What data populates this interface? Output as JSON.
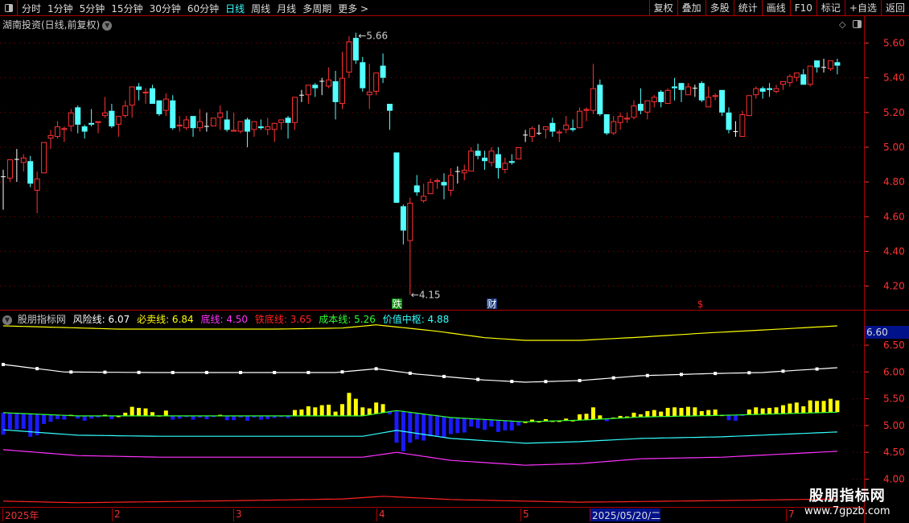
{
  "toolbar": {
    "periods": [
      "分时",
      "1分钟",
      "5分钟",
      "15分钟",
      "30分钟",
      "60分钟",
      "日线",
      "周线",
      "月线",
      "多周期",
      "更多 >"
    ],
    "active": "日线",
    "right_buttons": [
      "复权",
      "叠加",
      "多股",
      "统计",
      "画线",
      "F10",
      "标记",
      "+自选",
      "返回"
    ]
  },
  "chart_title": "湖南投资(日线,前复权)",
  "price_axis": {
    "ticks": [
      "5.60",
      "5.40",
      "5.20",
      "5.00",
      "4.80",
      "4.60",
      "4.40",
      "4.20"
    ]
  },
  "annotations": {
    "high": "5.66",
    "low": "4.15",
    "badges": [
      {
        "text": "跌",
        "color": "#0a8a0a",
        "index": 58
      },
      {
        "text": "财",
        "color": "#1a3a7a",
        "index": 72
      },
      {
        "text": "$",
        "color": "#e22",
        "index": 103
      }
    ]
  },
  "candles": [
    [
      4.83,
      4.87,
      4.64,
      4.83
    ],
    [
      4.82,
      4.93,
      4.8,
      4.93
    ],
    [
      4.93,
      4.99,
      4.8,
      4.93
    ],
    [
      4.91,
      4.96,
      4.86,
      4.94
    ],
    [
      4.92,
      4.95,
      4.77,
      4.79
    ],
    [
      4.75,
      4.86,
      4.62,
      4.82
    ],
    [
      4.85,
      5.03,
      4.85,
      5.03
    ],
    [
      5.05,
      5.1,
      4.99,
      5.07
    ],
    [
      5.06,
      5.15,
      5.05,
      5.12
    ],
    [
      5.1,
      5.12,
      5.03,
      5.11
    ],
    [
      5.12,
      5.22,
      5.09,
      5.2
    ],
    [
      5.23,
      5.24,
      5.08,
      5.13
    ],
    [
      5.12,
      5.13,
      5.05,
      5.09
    ],
    [
      5.14,
      5.22,
      5.12,
      5.13
    ],
    [
      5.14,
      5.15,
      5.08,
      5.15
    ],
    [
      5.18,
      5.29,
      5.17,
      5.2
    ],
    [
      5.21,
      5.25,
      5.11,
      5.12
    ],
    [
      5.13,
      5.18,
      5.06,
      5.18
    ],
    [
      5.18,
      5.27,
      5.17,
      5.24
    ],
    [
      5.24,
      5.35,
      5.17,
      5.35
    ],
    [
      5.35,
      5.37,
      5.27,
      5.33
    ],
    [
      5.31,
      5.34,
      5.25,
      5.32
    ],
    [
      5.34,
      5.36,
      5.25,
      5.25
    ],
    [
      5.27,
      5.27,
      5.18,
      5.19
    ],
    [
      5.21,
      5.31,
      5.18,
      5.28
    ],
    [
      5.27,
      5.3,
      5.1,
      5.11
    ],
    [
      5.12,
      5.18,
      5.09,
      5.13
    ],
    [
      5.11,
      5.18,
      5.1,
      5.16
    ],
    [
      5.18,
      5.18,
      5.06,
      5.11
    ],
    [
      5.11,
      5.22,
      5.09,
      5.15
    ],
    [
      5.12,
      5.2,
      5.09,
      5.12
    ],
    [
      5.12,
      5.17,
      5.12,
      5.17
    ],
    [
      5.17,
      5.24,
      5.1,
      5.2
    ],
    [
      5.16,
      5.21,
      5.09,
      5.1
    ],
    [
      5.09,
      5.2,
      5.09,
      5.1
    ],
    [
      5.09,
      5.15,
      5.08,
      5.15
    ],
    [
      5.16,
      5.17,
      5.0,
      5.09
    ],
    [
      5.1,
      5.15,
      5.06,
      5.15
    ],
    [
      5.12,
      5.16,
      5.1,
      5.11
    ],
    [
      5.1,
      5.17,
      5.07,
      5.12
    ],
    [
      5.1,
      5.14,
      5.03,
      5.14
    ],
    [
      5.14,
      5.16,
      5.1,
      5.16
    ],
    [
      5.17,
      5.18,
      5.05,
      5.14
    ],
    [
      5.14,
      5.29,
      5.1,
      5.29
    ],
    [
      5.3,
      5.33,
      5.26,
      5.3
    ],
    [
      5.3,
      5.36,
      5.25,
      5.36
    ],
    [
      5.36,
      5.37,
      5.29,
      5.34
    ],
    [
      5.38,
      5.4,
      5.3,
      5.38
    ],
    [
      5.35,
      5.46,
      5.34,
      5.39
    ],
    [
      5.38,
      5.44,
      5.16,
      5.26
    ],
    [
      5.25,
      5.55,
      5.22,
      5.4
    ],
    [
      5.43,
      5.64,
      5.4,
      5.61
    ],
    [
      5.63,
      5.66,
      5.48,
      5.5
    ],
    [
      5.49,
      5.52,
      5.32,
      5.34
    ],
    [
      5.3,
      5.48,
      5.22,
      5.32
    ],
    [
      5.32,
      5.43,
      5.3,
      5.43
    ],
    [
      5.47,
      5.54,
      5.37,
      5.4
    ],
    [
      5.25,
      5.25,
      5.1,
      5.21
    ],
    [
      4.97,
      4.97,
      4.68,
      4.68
    ],
    [
      4.66,
      4.67,
      4.44,
      4.52
    ],
    [
      4.46,
      4.71,
      4.15,
      4.68
    ],
    [
      4.78,
      4.84,
      4.72,
      4.74
    ],
    [
      4.69,
      4.79,
      4.68,
      4.72
    ],
    [
      4.73,
      4.82,
      4.73,
      4.8
    ],
    [
      4.8,
      4.82,
      4.76,
      4.81
    ],
    [
      4.8,
      4.85,
      4.7,
      4.78
    ],
    [
      4.75,
      4.88,
      4.72,
      4.84
    ],
    [
      4.86,
      4.89,
      4.79,
      4.86
    ],
    [
      4.85,
      4.9,
      4.81,
      4.87
    ],
    [
      4.86,
      5.0,
      4.86,
      4.98
    ],
    [
      4.98,
      5.02,
      4.93,
      4.95
    ],
    [
      4.94,
      4.98,
      4.87,
      4.92
    ],
    [
      4.91,
      5.0,
      4.89,
      4.98
    ],
    [
      4.96,
      5.0,
      4.82,
      4.88
    ],
    [
      4.87,
      4.94,
      4.85,
      4.91
    ],
    [
      4.92,
      4.96,
      4.9,
      4.91
    ],
    [
      4.93,
      5.0,
      4.93,
      5.0
    ],
    [
      5.07,
      5.1,
      5.03,
      5.07
    ],
    [
      5.06,
      5.12,
      5.03,
      5.11
    ],
    [
      5.08,
      5.13,
      5.07,
      5.08
    ],
    [
      5.1,
      5.12,
      5.05,
      5.12
    ],
    [
      5.14,
      5.17,
      5.06,
      5.09
    ],
    [
      5.08,
      5.1,
      5.03,
      5.09
    ],
    [
      5.1,
      5.18,
      5.08,
      5.13
    ],
    [
      5.11,
      5.16,
      5.09,
      5.1
    ],
    [
      5.11,
      5.23,
      5.11,
      5.21
    ],
    [
      5.21,
      5.23,
      5.15,
      5.22
    ],
    [
      5.21,
      5.48,
      5.19,
      5.34
    ],
    [
      5.36,
      5.39,
      5.18,
      5.19
    ],
    [
      5.19,
      5.19,
      5.07,
      5.08
    ],
    [
      5.08,
      5.18,
      5.07,
      5.15
    ],
    [
      5.14,
      5.2,
      5.1,
      5.18
    ],
    [
      5.16,
      5.2,
      5.14,
      5.17
    ],
    [
      5.17,
      5.27,
      5.16,
      5.24
    ],
    [
      5.25,
      5.34,
      5.19,
      5.21
    ],
    [
      5.2,
      5.27,
      5.16,
      5.27
    ],
    [
      5.26,
      5.3,
      5.23,
      5.29
    ],
    [
      5.32,
      5.33,
      5.23,
      5.26
    ],
    [
      5.25,
      5.34,
      5.25,
      5.33
    ],
    [
      5.35,
      5.4,
      5.27,
      5.34
    ],
    [
      5.37,
      5.37,
      5.26,
      5.33
    ],
    [
      5.3,
      5.37,
      5.3,
      5.35
    ],
    [
      5.34,
      5.36,
      5.29,
      5.34
    ],
    [
      5.37,
      5.38,
      5.26,
      5.27
    ],
    [
      5.23,
      5.35,
      5.23,
      5.29
    ],
    [
      5.29,
      5.31,
      5.27,
      5.3
    ],
    [
      5.33,
      5.33,
      5.18,
      5.2
    ],
    [
      5.2,
      5.23,
      5.08,
      5.1
    ],
    [
      5.09,
      5.15,
      5.06,
      5.09
    ],
    [
      5.06,
      5.21,
      5.06,
      5.19
    ],
    [
      5.18,
      5.3,
      5.18,
      5.3
    ],
    [
      5.3,
      5.35,
      5.28,
      5.34
    ],
    [
      5.34,
      5.35,
      5.28,
      5.32
    ],
    [
      5.34,
      5.37,
      5.29,
      5.33
    ],
    [
      5.32,
      5.36,
      5.31,
      5.34
    ],
    [
      5.36,
      5.38,
      5.33,
      5.38
    ],
    [
      5.37,
      5.42,
      5.35,
      5.41
    ],
    [
      5.4,
      5.43,
      5.38,
      5.43
    ],
    [
      5.42,
      5.45,
      5.36,
      5.36
    ],
    [
      5.36,
      5.47,
      5.35,
      5.47
    ],
    [
      5.5,
      5.5,
      5.43,
      5.46
    ],
    [
      5.46,
      5.51,
      5.43,
      5.46
    ],
    [
      5.45,
      5.5,
      5.44,
      5.5
    ],
    [
      5.49,
      5.51,
      5.42,
      5.47
    ]
  ],
  "indicator": {
    "name": "股朋指标网",
    "legend": [
      {
        "label": "风险线: 6.07",
        "color": "#ffffff"
      },
      {
        "label": "必卖线: 6.84",
        "color": "#ffff00"
      },
      {
        "label": "底线: 4.50",
        "color": "#ff33ff"
      },
      {
        "label": "铁底线: 3.65",
        "color": "#ff2222"
      },
      {
        "label": "成本线: 5.26",
        "color": "#33ff33"
      },
      {
        "label": "价值中枢: 4.88",
        "color": "#33ffff"
      }
    ],
    "axis_ticks": [
      "6.50",
      "6.00",
      "5.50",
      "5.00",
      "4.50",
      "4.00"
    ],
    "current_value": "6.60",
    "colors": {
      "bar_up": "#ffff00",
      "bar_down": "#1a1aff"
    },
    "lines": {
      "sell": {
        "color": "#ffff00",
        "points": [
          [
            0,
            6.86
          ],
          [
            9,
            6.83
          ],
          [
            17,
            6.8
          ],
          [
            40,
            6.8
          ],
          [
            50,
            6.82
          ],
          [
            55,
            6.88
          ],
          [
            64,
            6.76
          ],
          [
            71,
            6.64
          ],
          [
            77,
            6.59
          ],
          [
            85,
            6.59
          ],
          [
            94,
            6.65
          ],
          [
            104,
            6.73
          ],
          [
            113,
            6.79
          ],
          [
            123,
            6.86
          ]
        ]
      },
      "risk": {
        "color": "#ffffff",
        "points": [
          [
            0,
            6.14
          ],
          [
            9,
            6.0
          ],
          [
            22,
            5.99
          ],
          [
            49,
            5.99
          ],
          [
            55,
            6.06
          ],
          [
            61,
            5.96
          ],
          [
            71,
            5.85
          ],
          [
            77,
            5.81
          ],
          [
            85,
            5.84
          ],
          [
            94,
            5.93
          ],
          [
            104,
            5.97
          ],
          [
            112,
            5.99
          ],
          [
            123,
            6.08
          ]
        ]
      },
      "cost": {
        "color": "#33ff33",
        "points": [
          [
            0,
            5.24
          ],
          [
            11,
            5.18
          ],
          [
            53,
            5.18
          ],
          [
            58,
            5.28
          ],
          [
            66,
            5.15
          ],
          [
            77,
            5.07
          ],
          [
            85,
            5.1
          ],
          [
            94,
            5.16
          ],
          [
            106,
            5.19
          ],
          [
            123,
            5.25
          ]
        ]
      },
      "value": {
        "color": "#33ffff",
        "points": [
          [
            0,
            4.92
          ],
          [
            11,
            4.82
          ],
          [
            23,
            4.8
          ],
          [
            53,
            4.8
          ],
          [
            58,
            4.91
          ],
          [
            66,
            4.76
          ],
          [
            77,
            4.67
          ],
          [
            85,
            4.7
          ],
          [
            94,
            4.76
          ],
          [
            106,
            4.79
          ],
          [
            123,
            4.88
          ]
        ]
      },
      "bottom": {
        "color": "#ff33ff",
        "points": [
          [
            0,
            4.55
          ],
          [
            11,
            4.44
          ],
          [
            23,
            4.41
          ],
          [
            53,
            4.41
          ],
          [
            58,
            4.5
          ],
          [
            66,
            4.35
          ],
          [
            77,
            4.26
          ],
          [
            85,
            4.29
          ],
          [
            94,
            4.38
          ],
          [
            106,
            4.41
          ],
          [
            123,
            4.52
          ]
        ]
      },
      "iron": {
        "color": "#ff2222",
        "points": [
          [
            0,
            3.59
          ],
          [
            11,
            3.56
          ],
          [
            35,
            3.6
          ],
          [
            50,
            3.63
          ],
          [
            56,
            3.68
          ],
          [
            66,
            3.62
          ],
          [
            77,
            3.59
          ],
          [
            85,
            3.57
          ],
          [
            106,
            3.6
          ],
          [
            123,
            3.63
          ]
        ]
      }
    }
  },
  "time_axis": {
    "labels": [
      {
        "text": "2025年"
      },
      {
        "text": "2"
      },
      {
        "text": "3"
      },
      {
        "text": "4"
      },
      {
        "text": "5"
      },
      {
        "text": "2025/05/20/二",
        "highlight": true
      },
      {
        "text": "7"
      }
    ]
  },
  "watermark": {
    "line1": "股朋指标网",
    "line2": "www.7gpzb.com"
  },
  "colors": {
    "up": "#ff3333",
    "down": "#54ffff",
    "flat": "#ffffff",
    "grid": "#8a0000",
    "axis": "#ff3333"
  }
}
